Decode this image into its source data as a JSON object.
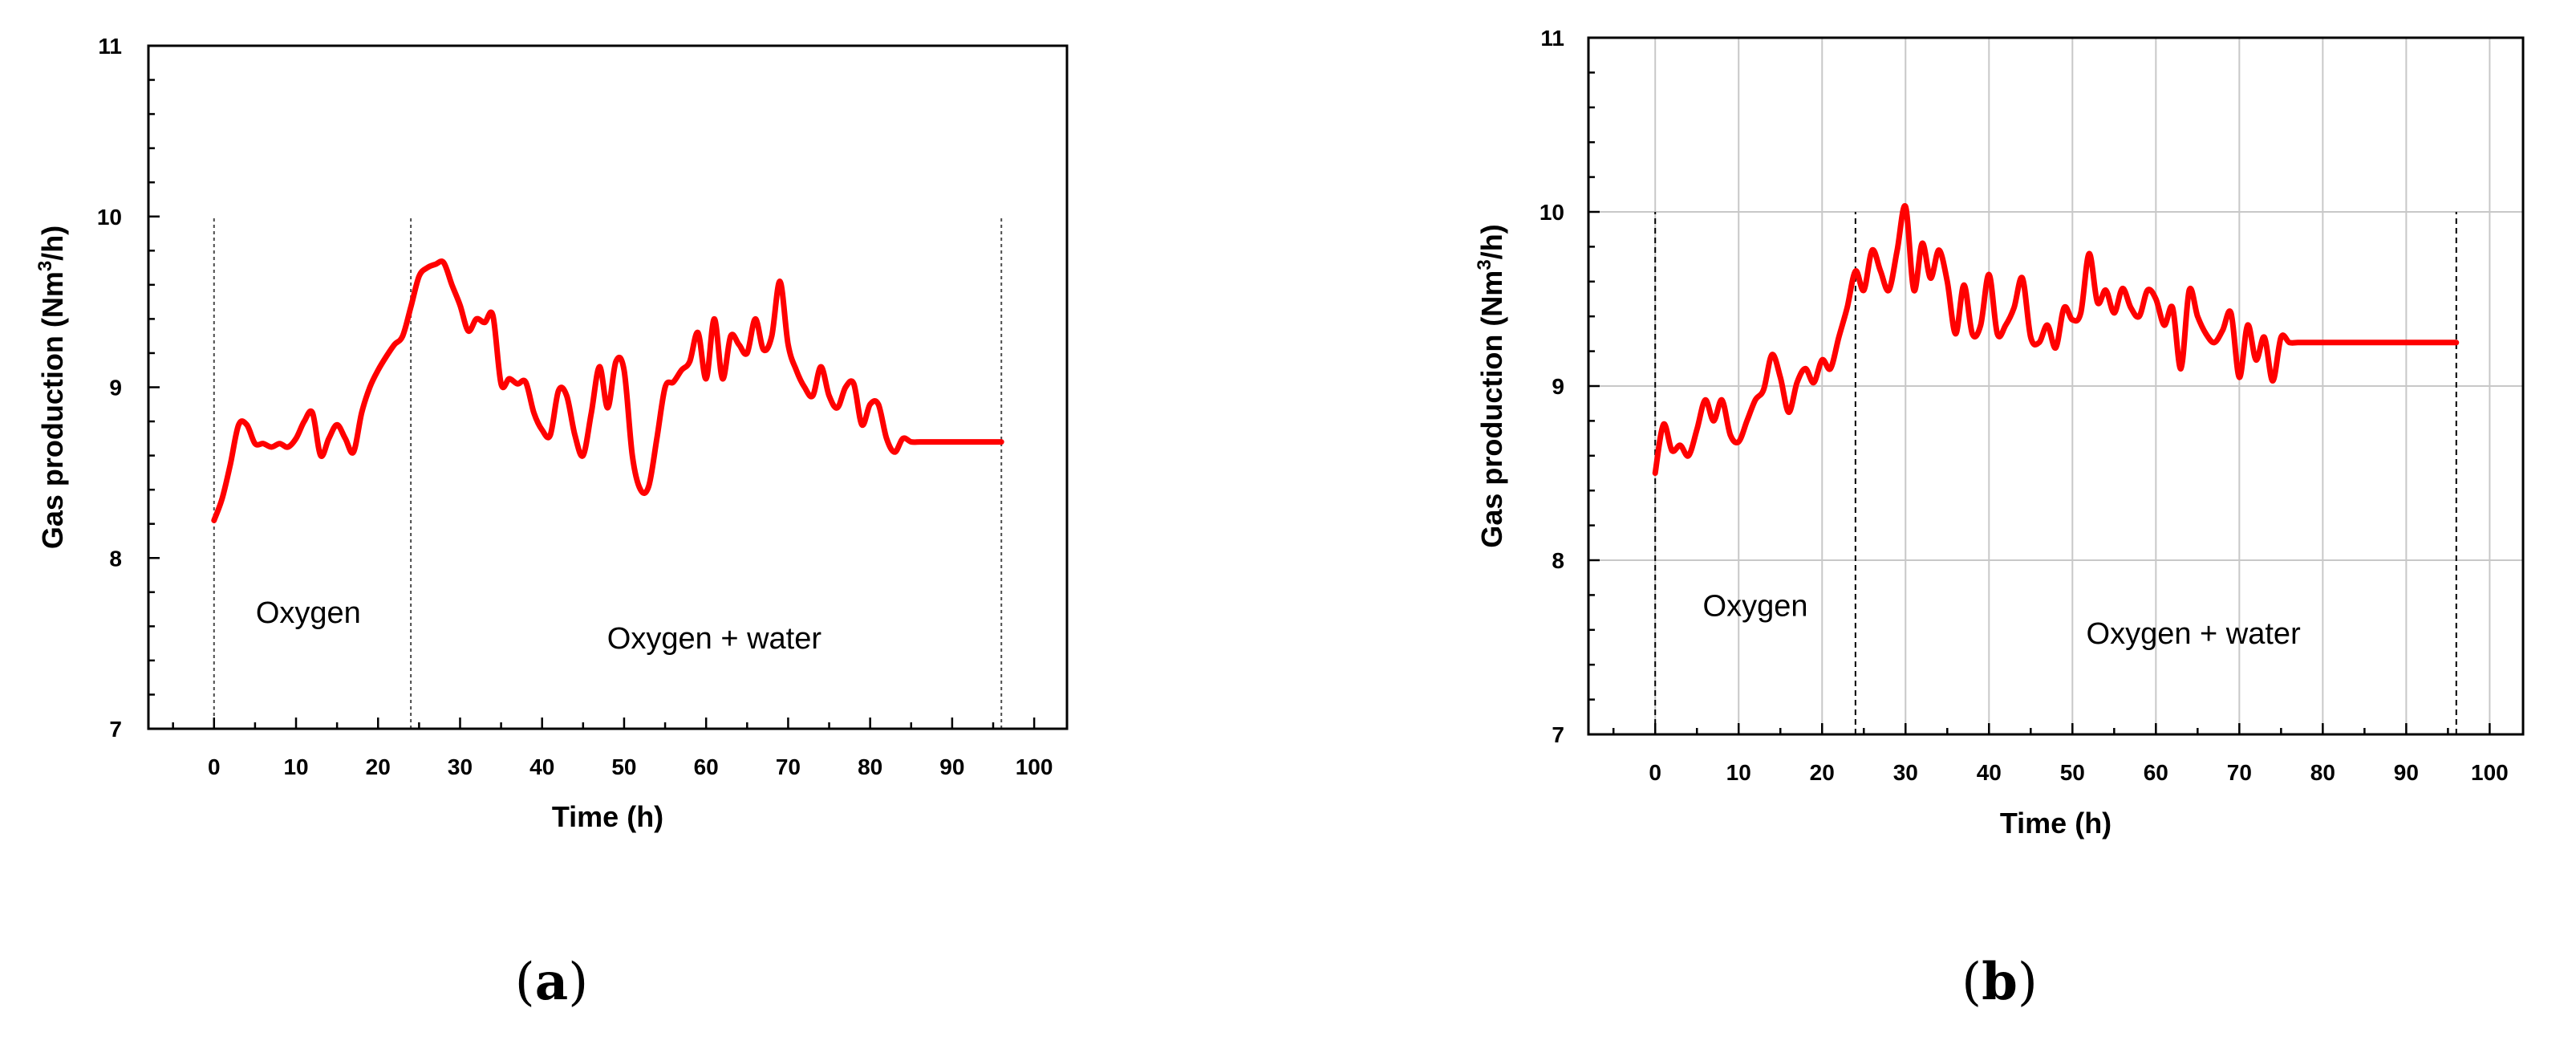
{
  "chart_data": [
    {
      "type": "line",
      "panel": "a",
      "panel_label": "a",
      "title": "",
      "xlabel": "Time (h)",
      "ylabel": "Gas production (Nm³/h)",
      "ylabel_parts": [
        "Gas production (Nm",
        "3",
        "/h)"
      ],
      "xlim": [
        -8,
        104
      ],
      "ylim": [
        7,
        11
      ],
      "xticks": [
        0,
        10,
        20,
        30,
        40,
        50,
        60,
        70,
        80,
        90,
        100
      ],
      "yticks": [
        7,
        8,
        9,
        10,
        11
      ],
      "grid": false,
      "series_color": "#ff0000",
      "phase_lines": [
        0,
        24,
        96
      ],
      "phase_line_top": 10,
      "annotations": [
        {
          "text": "Oxygen",
          "x": 11.5,
          "y": 7.62
        },
        {
          "text": "Oxygen + water",
          "x": 61,
          "y": 7.47
        }
      ],
      "series": [
        {
          "x": [
            0,
            1,
            2,
            3,
            4,
            5,
            6,
            7,
            8,
            9,
            10,
            11,
            12,
            13,
            14,
            15,
            16,
            17,
            18,
            19,
            20,
            21,
            22,
            23,
            24,
            25,
            26,
            27,
            28,
            29,
            30,
            31,
            32,
            33,
            34,
            35,
            36,
            37,
            38,
            39,
            40,
            41,
            42,
            43,
            44,
            45,
            46,
            47,
            48,
            49,
            50,
            51,
            52,
            53,
            54,
            55,
            56,
            57,
            58,
            59,
            60,
            61,
            62,
            63,
            64,
            65,
            66,
            67,
            68,
            69,
            70,
            71,
            72,
            73,
            74,
            75,
            76,
            77,
            78,
            79,
            80,
            81,
            82,
            83,
            84,
            85,
            86,
            87,
            88,
            89,
            90,
            91,
            92,
            93,
            94,
            95,
            96
          ],
          "y": [
            8.22,
            8.35,
            8.55,
            8.78,
            8.78,
            8.67,
            8.67,
            8.65,
            8.67,
            8.65,
            8.7,
            8.8,
            8.85,
            8.6,
            8.7,
            8.78,
            8.7,
            8.62,
            8.85,
            9.0,
            9.1,
            9.18,
            9.25,
            9.3,
            9.47,
            9.65,
            9.7,
            9.72,
            9.73,
            9.6,
            9.48,
            9.33,
            9.4,
            9.38,
            9.42,
            9.02,
            9.05,
            9.02,
            9.03,
            8.85,
            8.75,
            8.72,
            8.98,
            8.95,
            8.72,
            8.6,
            8.85,
            9.12,
            8.88,
            9.15,
            9.1,
            8.6,
            8.4,
            8.42,
            8.7,
            9.0,
            9.03,
            9.1,
            9.15,
            9.32,
            9.05,
            9.4,
            9.05,
            9.3,
            9.25,
            9.2,
            9.4,
            9.22,
            9.3,
            9.62,
            9.25,
            9.1,
            9.0,
            8.95,
            9.12,
            8.95,
            8.88,
            9.0,
            9.02,
            8.78,
            8.9,
            8.9,
            8.7,
            8.62,
            8.7,
            8.68,
            8.68,
            8.68,
            8.68,
            8.68,
            8.68,
            8.68,
            8.68,
            8.68,
            8.68,
            8.68,
            8.68
          ]
        }
      ]
    },
    {
      "type": "line",
      "panel": "b",
      "panel_label": "b",
      "title": "",
      "xlabel": "Time (h)",
      "ylabel": "Gas production (Nm³/h)",
      "ylabel_parts": [
        "Gas production (Nm",
        "3",
        "/h)"
      ],
      "xlim": [
        -8,
        104
      ],
      "ylim": [
        7,
        11
      ],
      "xticks": [
        0,
        10,
        20,
        30,
        40,
        50,
        60,
        70,
        80,
        90,
        100
      ],
      "yticks": [
        7,
        8,
        9,
        10,
        11
      ],
      "grid": true,
      "series_color": "#ff0000",
      "phase_lines": [
        0,
        24,
        96
      ],
      "phase_line_top": 10,
      "annotations": [
        {
          "text": "Oxygen",
          "x": 12,
          "y": 7.68
        },
        {
          "text": "Oxygen + water",
          "x": 64.5,
          "y": 7.52
        }
      ],
      "series": [
        {
          "x": [
            0,
            1,
            2,
            3,
            4,
            5,
            6,
            7,
            8,
            9,
            10,
            11,
            12,
            13,
            14,
            15,
            16,
            17,
            18,
            19,
            20,
            21,
            22,
            23,
            24,
            25,
            26,
            27,
            28,
            29,
            30,
            31,
            32,
            33,
            34,
            35,
            36,
            37,
            38,
            39,
            40,
            41,
            42,
            43,
            44,
            45,
            46,
            47,
            48,
            49,
            50,
            51,
            52,
            53,
            54,
            55,
            56,
            57,
            58,
            59,
            60,
            61,
            62,
            63,
            64,
            65,
            66,
            67,
            68,
            69,
            70,
            71,
            72,
            73,
            74,
            75,
            76,
            77,
            78,
            79,
            80,
            81,
            82,
            83,
            84,
            85,
            86,
            87,
            88,
            89,
            90,
            91,
            92,
            93,
            94,
            95,
            96
          ],
          "y": [
            8.5,
            8.78,
            8.63,
            8.66,
            8.6,
            8.75,
            8.92,
            8.8,
            8.92,
            8.72,
            8.68,
            8.8,
            8.92,
            8.98,
            9.18,
            9.05,
            8.85,
            9.02,
            9.1,
            9.02,
            9.15,
            9.1,
            9.28,
            9.45,
            9.66,
            9.55,
            9.78,
            9.66,
            9.55,
            9.78,
            10.03,
            9.55,
            9.82,
            9.62,
            9.78,
            9.6,
            9.3,
            9.58,
            9.3,
            9.35,
            9.64,
            9.3,
            9.35,
            9.45,
            9.62,
            9.28,
            9.25,
            9.35,
            9.22,
            9.45,
            9.38,
            9.42,
            9.76,
            9.48,
            9.55,
            9.42,
            9.56,
            9.45,
            9.4,
            9.55,
            9.5,
            9.35,
            9.45,
            9.1,
            9.55,
            9.4,
            9.3,
            9.25,
            9.32,
            9.42,
            9.05,
            9.35,
            9.15,
            9.28,
            9.03,
            9.28,
            9.25,
            9.25,
            9.25,
            9.25,
            9.25,
            9.25,
            9.25,
            9.25,
            9.25,
            9.25,
            9.25,
            9.25,
            9.25,
            9.25,
            9.25,
            9.25,
            9.25,
            9.25,
            9.25,
            9.25,
            9.25
          ]
        }
      ]
    }
  ]
}
